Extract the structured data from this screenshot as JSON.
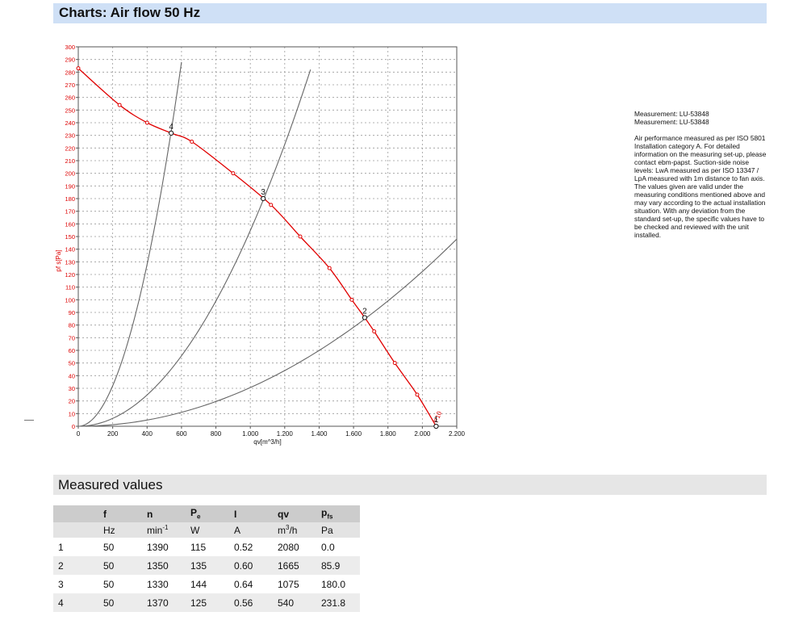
{
  "header": {
    "title": "Charts: Air flow 50 Hz"
  },
  "notes": {
    "measurement_lines": [
      "Measurement: LU-53848",
      "Measurement: LU-53848"
    ],
    "paragraph": [
      "Air performance measured as per ISO 5801",
      "Installation category A. For detailed",
      "information on the measuring set-up, please",
      "contact ebm-papst. Suction-side noise",
      "levels: LwA measured as per ISO 13347 /",
      "LpA measured with 1m distance to fan axis.",
      "The values given are valid under the",
      "measuring conditions mentioned above and",
      "may vary according to the actual installation",
      "situation. With any deviation from the",
      "standard set-up, the specific values have to",
      "be checked and reviewed with the unit",
      "installed."
    ]
  },
  "measured": {
    "title": "Measured values",
    "headers": {
      "f": "f",
      "n": "n",
      "pe_main": "P",
      "pe_sub": "e",
      "i": "I",
      "qv": "qv",
      "pfs_main": "p",
      "pfs_sub": "fs"
    },
    "units": {
      "f": "Hz",
      "n_main": "min",
      "n_sup": "-1",
      "pe": "W",
      "i": "A",
      "qv_main": "m",
      "qv_sup": "3",
      "qv_tail": "/h",
      "pfs": "Pa"
    },
    "rows": [
      {
        "id": "1",
        "f": "50",
        "n": "1390",
        "pe": "115",
        "i": "0.52",
        "qv": "2080",
        "pfs": "0.0"
      },
      {
        "id": "2",
        "f": "50",
        "n": "1350",
        "pe": "135",
        "i": "0.60",
        "qv": "1665",
        "pfs": "85.9"
      },
      {
        "id": "3",
        "f": "50",
        "n": "1330",
        "pe": "144",
        "i": "0.64",
        "qv": "1075",
        "pfs": "180.0"
      },
      {
        "id": "4",
        "f": "50",
        "n": "1370",
        "pe": "125",
        "i": "0.56",
        "qv": "540",
        "pfs": "231.8"
      }
    ]
  },
  "chart_data": {
    "type": "line",
    "xlabel": "qv[m^3/h]",
    "ylabel": "pf s[Pa]",
    "xlim": [
      0,
      2200
    ],
    "ylim": [
      0,
      300
    ],
    "x_ticks": [
      0,
      200,
      400,
      600,
      800,
      1000,
      1200,
      1400,
      1600,
      1800,
      2000,
      2200
    ],
    "x_tick_labels": [
      "0",
      "200",
      "400",
      "600",
      "800",
      "1.000",
      "1.200",
      "1.400",
      "1.600",
      "1.800",
      "2.000",
      "2.200"
    ],
    "y_ticks": [
      0,
      10,
      20,
      30,
      40,
      50,
      60,
      70,
      80,
      90,
      100,
      110,
      120,
      130,
      140,
      150,
      160,
      170,
      180,
      190,
      200,
      210,
      220,
      230,
      240,
      250,
      260,
      270,
      280,
      290,
      300
    ],
    "grid": true,
    "colors": {
      "fan_curve": "#e00000",
      "system_curves": "#666666",
      "axis_text": "#dd0000"
    },
    "fan_curve": {
      "name": "P10",
      "x": [
        0,
        240,
        400,
        540,
        660,
        900,
        1120,
        1290,
        1460,
        1590,
        1665,
        1720,
        1840,
        1970,
        2080
      ],
      "y": [
        283,
        254,
        240,
        231.8,
        225,
        200,
        175,
        150,
        125,
        100,
        85.9,
        75,
        50,
        25,
        0
      ]
    },
    "system_curves": [
      {
        "label": "1",
        "x_end": 2200,
        "y_end": 148
      },
      {
        "label": "2",
        "x_end": 1350,
        "y_end": 282
      },
      {
        "label": "3",
        "x_end": 600,
        "y_end": 288
      }
    ],
    "operating_points": [
      {
        "label": "1",
        "x": 2080,
        "y": 0
      },
      {
        "label": "2",
        "x": 1665,
        "y": 85.9
      },
      {
        "label": "3",
        "x": 1075,
        "y": 180.0
      },
      {
        "label": "4",
        "x": 540,
        "y": 231.8
      }
    ]
  }
}
